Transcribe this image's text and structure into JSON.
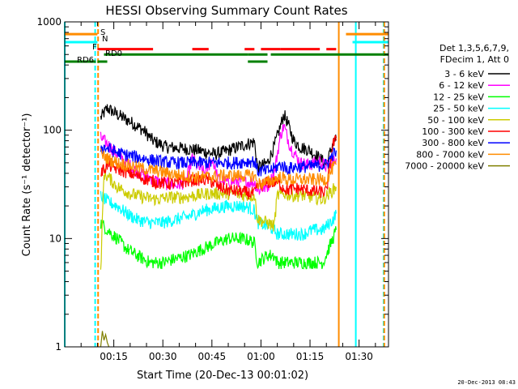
{
  "chart_data": {
    "type": "line",
    "title": "HESSI Observing Summary Count Rates",
    "xlabel": "Start Time (20-Dec-13 00:01:02)",
    "ylabel": "Count Rate (s⁻¹ detector⁻¹)",
    "yscale": "log",
    "ylim": [
      1,
      1000
    ],
    "y_ticks": [
      "1",
      "10",
      "100",
      "1000"
    ],
    "xlim_minutes": [
      0,
      99
    ],
    "x_ticks": [
      {
        "label": "00:15",
        "minute": 15
      },
      {
        "label": "00:30",
        "minute": 30
      },
      {
        "label": "00:45",
        "minute": 45
      },
      {
        "label": "01:00",
        "minute": 60
      },
      {
        "label": "01:15",
        "minute": 75
      },
      {
        "label": "01:30",
        "minute": 90
      }
    ],
    "grid": false,
    "legend_placement": "right",
    "legend_header": [
      "Det 1,3,5,6,7,9,",
      "FDecim 1, Att 0"
    ],
    "series": [
      {
        "name": "3 - 6 keV",
        "color": "#000000",
        "points": [
          [
            11,
            130
          ],
          [
            13,
            160
          ],
          [
            16,
            140
          ],
          [
            20,
            120
          ],
          [
            24,
            100
          ],
          [
            27,
            80
          ],
          [
            31,
            70
          ],
          [
            36,
            68
          ],
          [
            41,
            65
          ],
          [
            46,
            60
          ],
          [
            50,
            65
          ],
          [
            53,
            70
          ],
          [
            56,
            75
          ],
          [
            58,
            78
          ],
          [
            59,
            45
          ],
          [
            62,
            50
          ],
          [
            64,
            70
          ],
          [
            66,
            110
          ],
          [
            67,
            140
          ],
          [
            68,
            120
          ],
          [
            70,
            80
          ],
          [
            72,
            70
          ],
          [
            75,
            65
          ],
          [
            78,
            55
          ],
          [
            80,
            48
          ],
          [
            82,
            75
          ],
          [
            83,
            85
          ]
        ]
      },
      {
        "name": "6 - 12 keV",
        "color": "#ff00ff",
        "points": [
          [
            11,
            85
          ],
          [
            13,
            75
          ],
          [
            16,
            60
          ],
          [
            19,
            50
          ],
          [
            22,
            42
          ],
          [
            25,
            38
          ],
          [
            28,
            34
          ],
          [
            31,
            32
          ],
          [
            34,
            31
          ],
          [
            37,
            33
          ],
          [
            39,
            55
          ],
          [
            41,
            45
          ],
          [
            43,
            40
          ],
          [
            45,
            55
          ],
          [
            47,
            35
          ],
          [
            50,
            33
          ],
          [
            53,
            34
          ],
          [
            56,
            33
          ],
          [
            58,
            33
          ],
          [
            59,
            28
          ],
          [
            62,
            30
          ],
          [
            64,
            40
          ],
          [
            66,
            90
          ],
          [
            67,
            110
          ],
          [
            69,
            70
          ],
          [
            72,
            50
          ],
          [
            75,
            48
          ],
          [
            78,
            52
          ],
          [
            80,
            46
          ],
          [
            82,
            50
          ],
          [
            83,
            55
          ]
        ]
      },
      {
        "name": "12 - 25 keV",
        "color": "#00ff00",
        "points": [
          [
            11,
            14
          ],
          [
            13,
            12
          ],
          [
            16,
            10
          ],
          [
            19,
            8
          ],
          [
            22,
            7
          ],
          [
            26,
            6
          ],
          [
            30,
            6
          ],
          [
            34,
            6.5
          ],
          [
            38,
            7
          ],
          [
            42,
            8
          ],
          [
            46,
            9
          ],
          [
            50,
            10
          ],
          [
            54,
            10
          ],
          [
            57,
            9.5
          ],
          [
            58,
            9
          ],
          [
            59,
            6
          ],
          [
            62,
            7
          ],
          [
            64,
            7
          ],
          [
            65,
            6
          ],
          [
            67,
            6
          ],
          [
            70,
            6
          ],
          [
            73,
            6
          ],
          [
            76,
            6
          ],
          [
            79,
            6
          ],
          [
            82,
            10
          ],
          [
            83,
            12
          ]
        ]
      },
      {
        "name": "25 - 50 keV",
        "color": "#00ffff",
        "points": [
          [
            11,
            25
          ],
          [
            13,
            22
          ],
          [
            16,
            20
          ],
          [
            19,
            17
          ],
          [
            22,
            15
          ],
          [
            26,
            14
          ],
          [
            30,
            14
          ],
          [
            34,
            15
          ],
          [
            38,
            16
          ],
          [
            42,
            18
          ],
          [
            46,
            19
          ],
          [
            50,
            20
          ],
          [
            54,
            20
          ],
          [
            57,
            19
          ],
          [
            58,
            18
          ],
          [
            59,
            14
          ],
          [
            62,
            13
          ],
          [
            64,
            12
          ],
          [
            65,
            11
          ],
          [
            67,
            11
          ],
          [
            70,
            11
          ],
          [
            73,
            11
          ],
          [
            76,
            12
          ],
          [
            79,
            12
          ],
          [
            82,
            15
          ],
          [
            83,
            17
          ]
        ]
      },
      {
        "name": "50 - 100 keV",
        "color": "#cccc00",
        "points": [
          [
            11,
            5
          ],
          [
            12,
            40
          ],
          [
            14,
            35
          ],
          [
            16,
            30
          ],
          [
            20,
            26
          ],
          [
            24,
            24
          ],
          [
            28,
            23
          ],
          [
            32,
            24
          ],
          [
            36,
            24
          ],
          [
            40,
            25
          ],
          [
            44,
            26
          ],
          [
            48,
            26
          ],
          [
            52,
            26
          ],
          [
            55,
            25
          ],
          [
            58,
            25
          ],
          [
            59,
            15
          ],
          [
            62,
            14
          ],
          [
            64,
            13
          ],
          [
            65,
            25
          ],
          [
            67,
            26
          ],
          [
            70,
            25
          ],
          [
            73,
            25
          ],
          [
            76,
            24
          ],
          [
            79,
            23
          ],
          [
            82,
            28
          ],
          [
            83,
            30
          ]
        ]
      },
      {
        "name": "100 - 300 keV",
        "color": "#ff0000",
        "points": [
          [
            11,
            40
          ],
          [
            13,
            48
          ],
          [
            16,
            44
          ],
          [
            20,
            40
          ],
          [
            24,
            36
          ],
          [
            28,
            33
          ],
          [
            32,
            32
          ],
          [
            36,
            33
          ],
          [
            40,
            35
          ],
          [
            44,
            35
          ],
          [
            47,
            30
          ],
          [
            50,
            28
          ],
          [
            54,
            27
          ],
          [
            57,
            26
          ],
          [
            58,
            26
          ],
          [
            59,
            30
          ],
          [
            62,
            33
          ],
          [
            65,
            33
          ],
          [
            68,
            28
          ],
          [
            71,
            29
          ],
          [
            74,
            28
          ],
          [
            77,
            27
          ],
          [
            80,
            27
          ],
          [
            82,
            75
          ],
          [
            83,
            80
          ]
        ]
      },
      {
        "name": "300 - 800 keV",
        "color": "#0000ff",
        "points": [
          [
            11,
            70
          ],
          [
            13,
            68
          ],
          [
            16,
            62
          ],
          [
            20,
            58
          ],
          [
            24,
            55
          ],
          [
            28,
            52
          ],
          [
            32,
            50
          ],
          [
            36,
            50
          ],
          [
            40,
            50
          ],
          [
            44,
            50
          ],
          [
            48,
            50
          ],
          [
            52,
            50
          ],
          [
            55,
            51
          ],
          [
            58,
            52
          ],
          [
            59,
            42
          ],
          [
            62,
            42
          ],
          [
            64,
            44
          ],
          [
            66,
            48
          ],
          [
            68,
            44
          ],
          [
            71,
            46
          ],
          [
            74,
            46
          ],
          [
            77,
            47
          ],
          [
            80,
            48
          ],
          [
            82,
            60
          ],
          [
            83,
            65
          ]
        ]
      },
      {
        "name": "800 - 7000 keV",
        "color": "#ff8c00",
        "points": [
          [
            11,
            60
          ],
          [
            13,
            55
          ],
          [
            16,
            50
          ],
          [
            20,
            47
          ],
          [
            24,
            44
          ],
          [
            28,
            42
          ],
          [
            32,
            40
          ],
          [
            36,
            38
          ],
          [
            40,
            37
          ],
          [
            44,
            37
          ],
          [
            48,
            38
          ],
          [
            52,
            38
          ],
          [
            55,
            38
          ],
          [
            58,
            38
          ],
          [
            59,
            32
          ],
          [
            62,
            33
          ],
          [
            64,
            35
          ],
          [
            66,
            37
          ],
          [
            68,
            35
          ],
          [
            71,
            35
          ],
          [
            74,
            35
          ],
          [
            77,
            35
          ],
          [
            80,
            35
          ],
          [
            82,
            45
          ],
          [
            83,
            48
          ]
        ]
      },
      {
        "name": "7000 - 20000 keV",
        "color": "#808000",
        "points": [
          [
            11,
            1.0
          ],
          [
            11.5,
            1.4
          ],
          [
            12,
            1.15
          ],
          [
            12.5,
            1.3
          ],
          [
            13,
            1.1
          ],
          [
            13.5,
            1.0
          ]
        ]
      }
    ],
    "state_flags": [
      {
        "label": "S",
        "color": "#ff8c00",
        "level": 770,
        "segments": [
          [
            0,
            10
          ],
          [
            86,
            99
          ]
        ]
      },
      {
        "label": "N",
        "color": "#00ffff",
        "level": 650,
        "segments": [
          [
            0,
            10
          ],
          [
            88,
            99
          ]
        ]
      },
      {
        "label": "F",
        "color": "#ff0000",
        "level": 560,
        "segments": [
          [
            10,
            27
          ],
          [
            39,
            44
          ],
          [
            55,
            58
          ],
          [
            60,
            66
          ],
          [
            66,
            78
          ],
          [
            80,
            83
          ]
        ]
      },
      {
        "label": "RD0",
        "color": "#008000",
        "level": 500,
        "segments": [
          [
            12,
            56
          ],
          [
            56,
            62
          ],
          [
            63,
            99
          ]
        ]
      },
      {
        "label": "RD6",
        "color": "#008000",
        "level": 430,
        "segments": [
          [
            0,
            9.5
          ],
          [
            10,
            13
          ],
          [
            56,
            62
          ]
        ]
      }
    ],
    "vertical_markers": [
      {
        "minute": 0,
        "color": "#00ffff"
      },
      {
        "minute": 9.3,
        "color": "#00ffff",
        "dashed": true
      },
      {
        "minute": 10.2,
        "color": "#ff8c00",
        "dashed": true
      },
      {
        "minute": 83.8,
        "color": "#ff8c00"
      },
      {
        "minute": 89,
        "color": "#00ffff"
      },
      {
        "minute": 97.5,
        "color": "#00ffff",
        "dashed": true
      },
      {
        "minute": 97.7,
        "color": "#ff8c00",
        "dashed": true
      }
    ]
  },
  "footer": {
    "timestamp": "20-Dec-2013 08:43"
  }
}
